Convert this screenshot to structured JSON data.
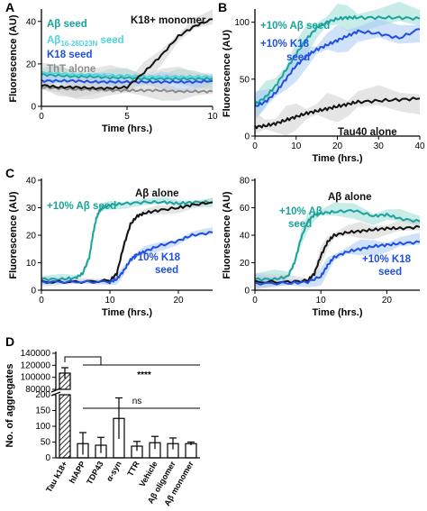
{
  "colors": {
    "ab_seed": "#1aa39a",
    "ab1626": "#4fd4e0",
    "k18_seed": "#1f4fe0",
    "tht": "#8c8c8c",
    "k18_monomer": "#111111",
    "ab_seed_band": "#9adcd6",
    "k18_band": "#a9c9f5",
    "grey_band": "#cfcfcf"
  },
  "chart_data": [
    {
      "panel": "A",
      "type": "line",
      "xlabel": "Time (hrs.)",
      "ylabel": "Fluorescence (AU)",
      "xlim": [
        0,
        10
      ],
      "ylim": [
        0,
        45
      ],
      "xticks": [
        "0",
        "5",
        "10"
      ],
      "yticks": [
        "0",
        "20",
        "40"
      ],
      "series": [
        {
          "name": "Aβ seed",
          "color_key": "ab_seed",
          "x": [
            0,
            1,
            2,
            3,
            4,
            5,
            6,
            7,
            8,
            9,
            10
          ],
          "y": [
            15,
            14.5,
            14,
            14,
            13.5,
            13.5,
            13,
            13,
            13,
            13,
            13
          ]
        },
        {
          "name": "Aβ16-26D23N seed",
          "color_key": "ab1626",
          "x": [
            0,
            1,
            2,
            3,
            4,
            5,
            6,
            7,
            8,
            9,
            10
          ],
          "y": [
            16,
            15.5,
            15,
            15,
            14.5,
            14.5,
            14,
            14,
            14,
            14,
            14
          ]
        },
        {
          "name": "K18 seed",
          "color_key": "k18_seed",
          "x": [
            0,
            1,
            2,
            3,
            4,
            5,
            6,
            7,
            8,
            9,
            10
          ],
          "y": [
            12,
            12,
            12,
            11.5,
            11.5,
            11.5,
            11.5,
            11.5,
            11.5,
            11.5,
            12
          ]
        },
        {
          "name": "ThT alone",
          "color_key": "tht",
          "x": [
            0,
            1,
            2,
            3,
            4,
            5,
            6,
            7,
            8,
            9,
            10
          ],
          "y": [
            9,
            8.5,
            8,
            8,
            7.5,
            7.5,
            7.5,
            7.5,
            7,
            7,
            7
          ]
        },
        {
          "name": "K18+ monomer",
          "color_key": "k18_monomer",
          "x": [
            0,
            1,
            2,
            3,
            4,
            5,
            6,
            7,
            8,
            9,
            10
          ],
          "y": [
            10,
            9,
            9,
            8.5,
            8.5,
            9,
            16,
            24,
            33,
            38,
            41
          ]
        }
      ]
    },
    {
      "panel": "B",
      "type": "line",
      "xlabel": "Time (hrs.)",
      "ylabel": "Fluorescence (AU)",
      "xlim": [
        0,
        40
      ],
      "ylim": [
        0,
        110
      ],
      "xticks": [
        "0",
        "10",
        "20",
        "30",
        "40"
      ],
      "yticks": [
        "0",
        "50",
        "100"
      ],
      "series": [
        {
          "name": "+10% Aβ seed",
          "color_key": "ab_seed",
          "x": [
            0,
            2.5,
            5,
            7.5,
            10,
            12.5,
            15,
            17.5,
            20,
            22.5,
            25,
            30,
            35,
            40
          ],
          "y": [
            28,
            34,
            44,
            58,
            72,
            85,
            95,
            100,
            103,
            104,
            104,
            104,
            104,
            103
          ]
        },
        {
          "name": "+10% K18 seed",
          "color_key": "k18_seed",
          "x": [
            0,
            2.5,
            5,
            7.5,
            10,
            12.5,
            15,
            17.5,
            20,
            22.5,
            25,
            30,
            35,
            40
          ],
          "y": [
            26,
            30,
            38,
            50,
            62,
            70,
            76,
            80,
            84,
            88,
            92,
            90,
            86,
            94
          ]
        },
        {
          "name": "Tau40 alone",
          "color_key": "k18_monomer",
          "x": [
            0,
            2.5,
            5,
            7.5,
            10,
            12.5,
            15,
            17.5,
            20,
            22.5,
            25,
            30,
            35,
            40
          ],
          "y": [
            8,
            9,
            11,
            14,
            17,
            20,
            22,
            24,
            26,
            28,
            30,
            31,
            32,
            33
          ]
        }
      ]
    },
    {
      "panel": "C",
      "type": "line",
      "xlabel": "Time (hrs.)",
      "ylabel": "Fluorescence (AU)",
      "xlim": [
        0,
        25
      ],
      "ylim": [
        0,
        40
      ],
      "xticks": [
        "0",
        "10",
        "20"
      ],
      "yticks": [
        "0",
        "10",
        "20",
        "30",
        "40"
      ],
      "series": [
        {
          "name": "+10% Aβ seed",
          "color_key": "ab_seed",
          "x": [
            0,
            3,
            5,
            6,
            7,
            7.5,
            8,
            8.5,
            9,
            10,
            12,
            15,
            18,
            20,
            22,
            25
          ],
          "y": [
            4,
            4,
            4.5,
            6,
            12,
            20,
            26,
            29,
            30,
            31,
            31.5,
            32,
            32,
            31.5,
            32,
            32
          ]
        },
        {
          "name": "Aβ alone",
          "color_key": "k18_monomer",
          "x": [
            0,
            5,
            10,
            11,
            12,
            13,
            14,
            15,
            17,
            20,
            22,
            25
          ],
          "y": [
            3,
            3,
            3.5,
            6,
            16,
            24,
            27,
            28,
            29,
            30,
            31,
            32
          ]
        },
        {
          "name": "+10% K18 seed",
          "color_key": "k18_seed",
          "x": [
            0,
            5,
            10,
            11,
            12,
            13,
            14,
            15,
            17,
            20,
            22,
            25
          ],
          "y": [
            3,
            3,
            3,
            4,
            7,
            11,
            13,
            14,
            16,
            18,
            20,
            21
          ]
        }
      ]
    },
    {
      "panel": "C-right",
      "type": "line",
      "xlabel": "Time (hrs.)",
      "ylabel": "Fluorescence (AU)",
      "xlim": [
        0,
        25
      ],
      "ylim": [
        0,
        80
      ],
      "xticks": [
        "0",
        "10",
        "20"
      ],
      "yticks": [
        "0",
        "20",
        "40",
        "60",
        "80"
      ],
      "series": [
        {
          "name": "+10% Aβ seed",
          "color_key": "ab_seed",
          "x": [
            0,
            3,
            5,
            6,
            7,
            8,
            9,
            10,
            12,
            15,
            18,
            20,
            22,
            25
          ],
          "y": [
            8,
            8,
            10,
            20,
            38,
            50,
            55,
            56,
            57,
            58,
            54,
            55,
            52,
            50
          ]
        },
        {
          "name": "Aβ alone",
          "color_key": "k18_monomer",
          "x": [
            0,
            5,
            8,
            9,
            10,
            11,
            12,
            14,
            16,
            18,
            20,
            22,
            25
          ],
          "y": [
            6,
            6,
            7,
            12,
            25,
            35,
            40,
            42,
            43,
            44,
            45,
            45,
            46
          ]
        },
        {
          "name": "+10% K18 seed",
          "color_key": "k18_seed",
          "x": [
            0,
            5,
            8,
            10,
            11,
            12,
            14,
            16,
            18,
            20,
            22,
            25
          ],
          "y": [
            5,
            5,
            6,
            10,
            18,
            24,
            28,
            30,
            32,
            33,
            34,
            35
          ]
        }
      ]
    },
    {
      "panel": "D",
      "type": "bar",
      "ylabel": "No. of aggregates",
      "categories": [
        "Tau k18+",
        "hIAPP",
        "TDP43",
        "α-syn",
        "TTR",
        "Vehicle",
        "Aβ oligomer",
        "Aβ monomer"
      ],
      "values": [
        107000,
        45,
        40,
        125,
        37,
        48,
        45,
        45
      ],
      "errors": [
        9000,
        35,
        25,
        65,
        15,
        20,
        18,
        5
      ],
      "y_upper_ticks": [
        "140000",
        "120000",
        "100000",
        "80000"
      ],
      "y_lower_ticks": [
        "0",
        "50",
        "100",
        "150",
        "200"
      ],
      "significance": [
        "****",
        "ns"
      ]
    }
  ],
  "labels": {
    "panel_a": "A",
    "panel_b": "B",
    "panel_c": "C",
    "panel_d": "D",
    "a_ab_seed": "Aβ seed",
    "a_ab1626_main": "Aβ",
    "a_ab1626_sub": "16-26D23N",
    "a_ab1626_tail": " seed",
    "a_k18_seed": "K18 seed",
    "a_tht": "ThT alone",
    "a_k18_monomer": "K18+ monomer",
    "b_ab_seed": "+10% Aβ seed",
    "b_k18_l1": "+10% K18",
    "b_k18_l2": "seed",
    "b_tau40": "Tau40 alone",
    "c_ab_seed": "+10% Aβ seed",
    "c_ab_alone": "Aβ alone",
    "c_k18_l1": "+10% K18",
    "c_k18_l2": "seed",
    "cr_ab_l1": "+10% Aβ",
    "cr_ab_l2": "seed",
    "cr_ab_alone": "Aβ alone",
    "cr_k18_l1": "+10% K18",
    "cr_k18_l2": "seed"
  }
}
